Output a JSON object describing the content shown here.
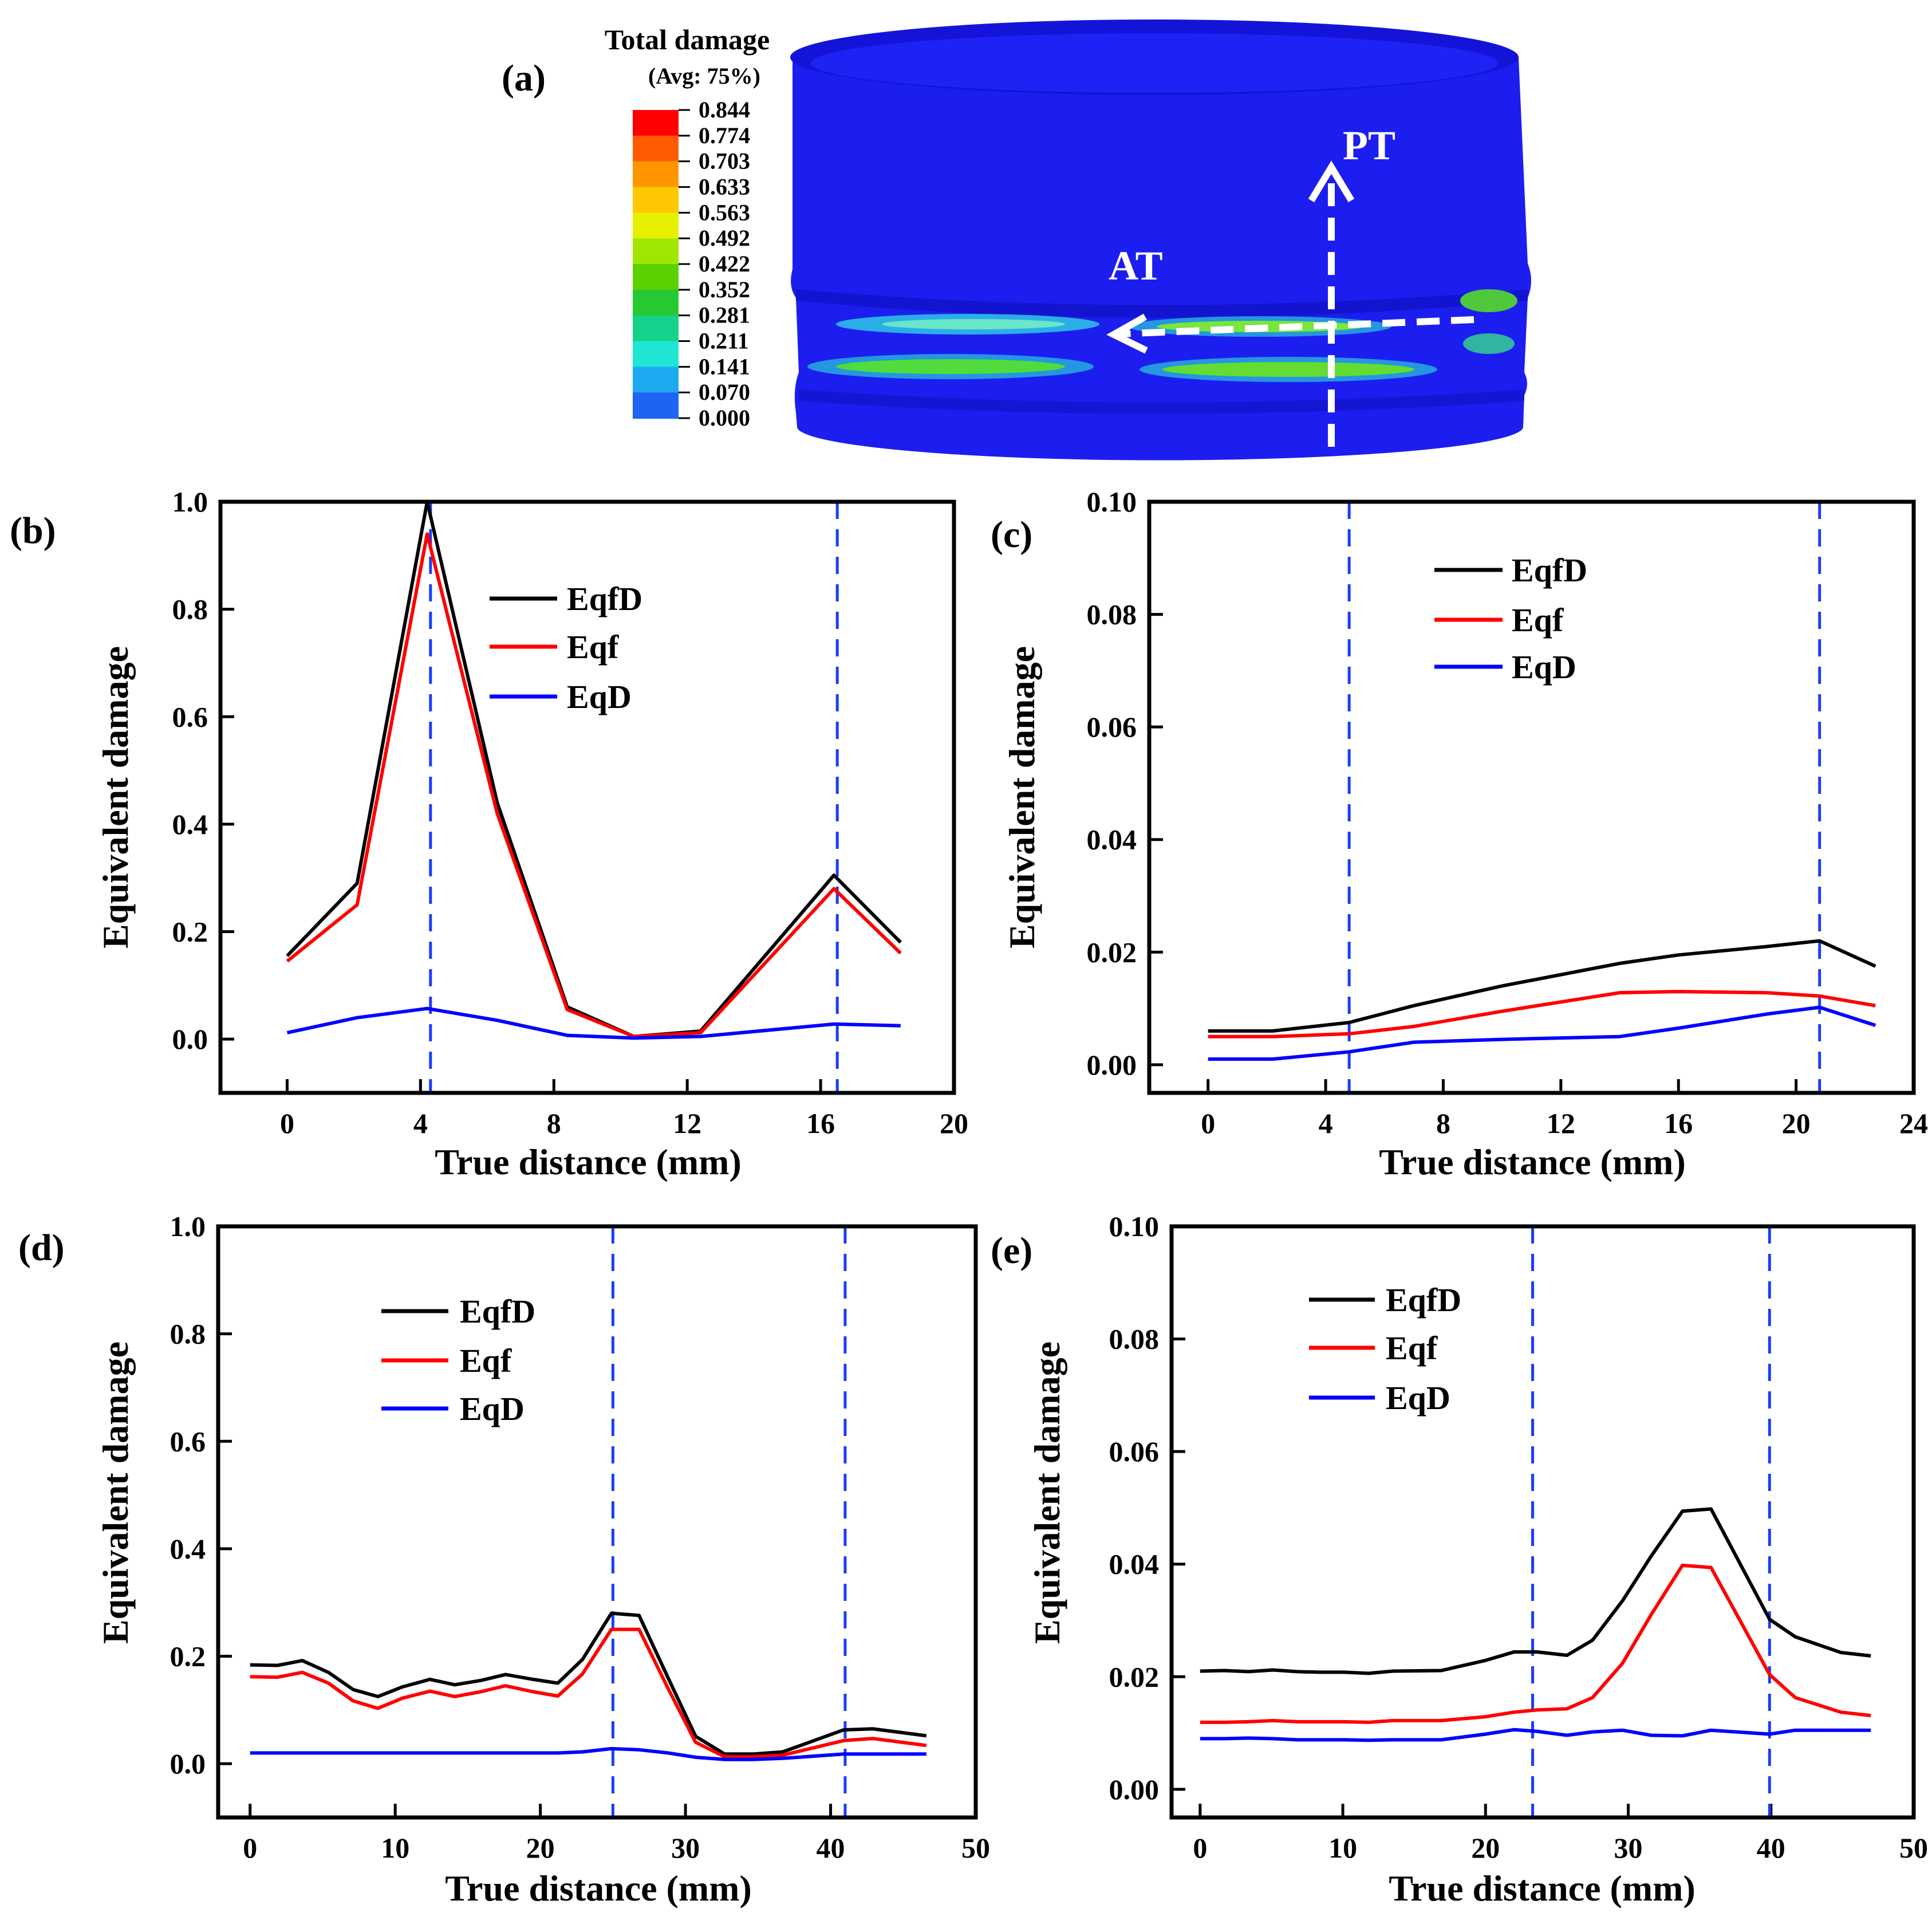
{
  "panel_a": {
    "label": "(a)",
    "colorbar_title": "Total damage",
    "colorbar_subtitle": "(Avg: 75%)",
    "colorbar_labels": [
      "0.844",
      "0.774",
      "0.703",
      "0.633",
      "0.563",
      "0.492",
      "0.422",
      "0.352",
      "0.281",
      "0.211",
      "0.141",
      "0.070",
      "0.000"
    ],
    "colorbar_colors": [
      "#ff0000",
      "#ff5a00",
      "#ff9600",
      "#ffc800",
      "#e6f000",
      "#a0e600",
      "#5ad200",
      "#28c832",
      "#14d28c",
      "#1ee6d2",
      "#1eaaf0",
      "#1e64f0"
    ],
    "arrow_pt": "PT",
    "arrow_at": "AT",
    "body_color": "#1c1ef0"
  },
  "chart_data": [
    {
      "panel": "(b)",
      "type": "line",
      "xlabel": "True distance (mm)",
      "ylabel": "Equivalent damage",
      "xlim": [
        -2,
        20
      ],
      "ylim": [
        -0.1,
        1.0
      ],
      "xticks": [
        "0",
        "4",
        "8",
        "12",
        "16",
        "20"
      ],
      "yticks": [
        "0.0",
        "0.2",
        "0.4",
        "0.6",
        "0.8",
        "1.0"
      ],
      "vlines": [
        4.3,
        16.5
      ],
      "x": [
        0,
        2.1,
        4.2,
        6.3,
        8.4,
        10.4,
        12.4,
        16.4,
        18.4
      ],
      "series": [
        {
          "name": "EqfD",
          "color": "#000000",
          "values": [
            0.155,
            0.29,
            1.0,
            0.44,
            0.06,
            0.005,
            0.015,
            0.305,
            0.18
          ]
        },
        {
          "name": "Eqf",
          "color": "#ff0000",
          "values": [
            0.145,
            0.25,
            0.94,
            0.42,
            0.055,
            0.005,
            0.012,
            0.28,
            0.16
          ]
        },
        {
          "name": "EqD",
          "color": "#0000ff",
          "values": [
            0.012,
            0.04,
            0.057,
            0.035,
            0.007,
            0.002,
            0.005,
            0.028,
            0.025
          ]
        }
      ]
    },
    {
      "panel": "(c)",
      "type": "line",
      "xlabel": "True distance (mm)",
      "ylabel": "Equivalent damage",
      "xlim": [
        -2,
        24
      ],
      "ylim": [
        -0.005,
        0.1
      ],
      "xticks": [
        "0",
        "4",
        "8",
        "12",
        "16",
        "20",
        "24"
      ],
      "yticks": [
        "0.00",
        "0.02",
        "0.04",
        "0.06",
        "0.08",
        "0.10"
      ],
      "vlines": [
        4.8,
        20.8
      ],
      "x": [
        0,
        2.2,
        4.8,
        7,
        10,
        14,
        16,
        19,
        20.8,
        22.7
      ],
      "series": [
        {
          "name": "EqfD",
          "color": "#000000",
          "values": [
            0.006,
            0.006,
            0.0075,
            0.0105,
            0.014,
            0.018,
            0.0195,
            0.021,
            0.022,
            0.0175
          ]
        },
        {
          "name": "Eqf",
          "color": "#ff0000",
          "values": [
            0.005,
            0.005,
            0.0055,
            0.0068,
            0.0095,
            0.0128,
            0.013,
            0.0128,
            0.0122,
            0.0105
          ]
        },
        {
          "name": "EqD",
          "color": "#0000ff",
          "values": [
            0.001,
            0.001,
            0.0023,
            0.004,
            0.0045,
            0.005,
            0.0065,
            0.009,
            0.0102,
            0.007
          ]
        }
      ]
    },
    {
      "panel": "(d)",
      "type": "line",
      "xlabel": "True distance (mm)",
      "ylabel": "Equivalent damage",
      "xlim": [
        -2.2,
        50
      ],
      "ylim": [
        -0.1,
        1.0
      ],
      "xticks": [
        "0",
        "10",
        "20",
        "30",
        "40",
        "50"
      ],
      "yticks": [
        "0.0",
        "0.2",
        "0.4",
        "0.6",
        "0.8",
        "1.0"
      ],
      "vlines": [
        25.0,
        41.0
      ],
      "x": [
        0,
        1.9,
        3.6,
        5.4,
        7.1,
        8.8,
        10.5,
        12.4,
        14.1,
        15.9,
        17.6,
        19.5,
        21.2,
        22.9,
        24.9,
        26.8,
        28.8,
        30.7,
        32.7,
        34.7,
        36.7,
        40.9,
        42.9,
        46.6
      ],
      "series": [
        {
          "name": "EqfD",
          "color": "#000000",
          "values": [
            0.184,
            0.183,
            0.192,
            0.17,
            0.138,
            0.125,
            0.143,
            0.157,
            0.147,
            0.155,
            0.166,
            0.157,
            0.15,
            0.194,
            0.28,
            0.276,
            0.16,
            0.051,
            0.018,
            0.018,
            0.022,
            0.063,
            0.065,
            0.052
          ]
        },
        {
          "name": "Eqf",
          "color": "#ff0000",
          "values": [
            0.162,
            0.161,
            0.17,
            0.15,
            0.117,
            0.103,
            0.122,
            0.135,
            0.125,
            0.134,
            0.145,
            0.134,
            0.126,
            0.167,
            0.25,
            0.25,
            0.14,
            0.04,
            0.013,
            0.013,
            0.016,
            0.043,
            0.047,
            0.034
          ]
        },
        {
          "name": "EqD",
          "color": "#0000ff",
          "values": [
            0.02,
            0.02,
            0.02,
            0.02,
            0.02,
            0.02,
            0.02,
            0.02,
            0.02,
            0.02,
            0.02,
            0.02,
            0.02,
            0.022,
            0.028,
            0.026,
            0.02,
            0.012,
            0.008,
            0.008,
            0.01,
            0.018,
            0.018,
            0.018
          ]
        }
      ]
    },
    {
      "panel": "(e)",
      "type": "line",
      "xlabel": "True distance (mm)",
      "ylabel": "Equivalent damage",
      "xlim": [
        -2,
        50
      ],
      "ylim": [
        -0.005,
        0.1
      ],
      "xticks": [
        "0",
        "10",
        "20",
        "30",
        "40",
        "50"
      ],
      "yticks": [
        "0.00",
        "0.02",
        "0.04",
        "0.06",
        "0.08",
        "0.10"
      ],
      "vlines": [
        23.3,
        39.9
      ],
      "x": [
        0,
        1.7,
        3.4,
        5.1,
        6.8,
        8.4,
        10.1,
        11.8,
        13.5,
        16.9,
        20,
        22,
        23.6,
        25.7,
        27.5,
        29.6,
        31.6,
        33.8,
        35.8,
        39.9,
        41.7,
        44.9,
        47.0
      ],
      "series": [
        {
          "name": "EqfD",
          "color": "#000000",
          "values": [
            0.021,
            0.0211,
            0.0209,
            0.0212,
            0.0209,
            0.0208,
            0.0208,
            0.0206,
            0.021,
            0.0211,
            0.0229,
            0.0244,
            0.0244,
            0.0238,
            0.0265,
            0.0335,
            0.0414,
            0.0494,
            0.0498,
            0.0302,
            0.0271,
            0.0243,
            0.0237
          ]
        },
        {
          "name": "Eqf",
          "color": "#ff0000",
          "values": [
            0.0119,
            0.0119,
            0.012,
            0.0122,
            0.012,
            0.012,
            0.012,
            0.0119,
            0.0122,
            0.0122,
            0.0129,
            0.0137,
            0.0141,
            0.0143,
            0.0163,
            0.0224,
            0.031,
            0.0398,
            0.0394,
            0.0204,
            0.0163,
            0.0137,
            0.0131
          ]
        },
        {
          "name": "EqD",
          "color": "#0000ff",
          "values": [
            0.009,
            0.009,
            0.0091,
            0.009,
            0.0088,
            0.0088,
            0.0088,
            0.0087,
            0.0088,
            0.0088,
            0.0098,
            0.0106,
            0.0103,
            0.0096,
            0.0102,
            0.0105,
            0.0096,
            0.0095,
            0.0105,
            0.0098,
            0.0105,
            0.0105,
            0.0105
          ]
        }
      ]
    }
  ]
}
